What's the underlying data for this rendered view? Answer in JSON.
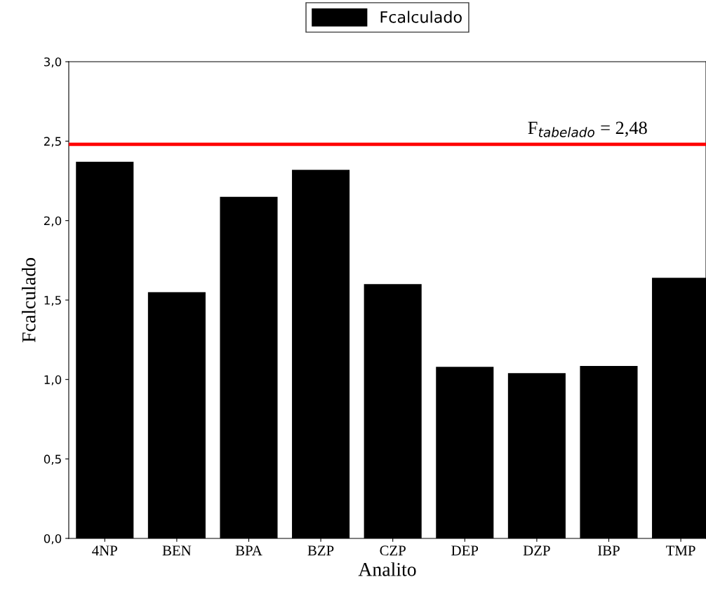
{
  "chart_data": {
    "type": "bar",
    "xlabel": "Analito",
    "ylabel": "Fcalculado",
    "categories": [
      "4NP",
      "BEN",
      "BPA",
      "BZP",
      "CZP",
      "DEP",
      "DZP",
      "IBP",
      "TMP"
    ],
    "series": [
      {
        "name": "Fcalculado",
        "color": "#000000",
        "values": [
          2.37,
          1.55,
          2.15,
          2.32,
          1.6,
          1.08,
          1.04,
          1.085,
          1.64
        ]
      }
    ],
    "ylim": [
      0,
      3
    ],
    "yticks": [
      {
        "value": 0,
        "label": "0,0"
      },
      {
        "value": 0.5,
        "label": "0,5"
      },
      {
        "value": 1,
        "label": "1,0"
      },
      {
        "value": 1.5,
        "label": "1,5"
      },
      {
        "value": 2,
        "label": "2,0"
      },
      {
        "value": 2.5,
        "label": "2,5"
      },
      {
        "value": 3,
        "label": "3,0"
      }
    ],
    "ref_lines": [
      {
        "axis": "y",
        "value": 2.48,
        "label": "F$_{tabelado}$ = 2,48",
        "color": "#ff0000",
        "line_style": "solid"
      }
    ],
    "legend": "top",
    "grid": false
  }
}
